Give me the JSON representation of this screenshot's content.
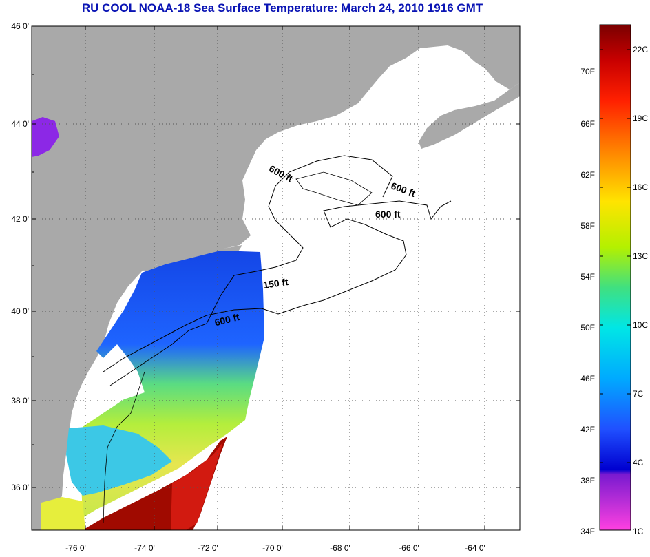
{
  "title": "RU COOL  NOAA-18  Sea Surface Temperature:  March 24, 2010 1916 GMT",
  "map": {
    "lat_ticks": [
      "46 0'",
      "44 0'",
      "42 0'",
      "40 0'",
      "38 0'",
      "36 0'"
    ],
    "lon_ticks": [
      "-76 0'",
      "-74 0'",
      "-72 0'",
      "-70 0'",
      "-68 0'",
      "-66 0'",
      "-64 0'"
    ],
    "contour_labels": [
      "600 ft",
      "600 ft",
      "600 ft",
      "150 ft",
      "600 ft"
    ],
    "colors": {
      "land": "#a9a9a9",
      "ocean_nodata": "#ffffff",
      "grid": "#555555"
    }
  },
  "colorbar": {
    "fahrenheit": [
      "70F",
      "66F",
      "62F",
      "58F",
      "54F",
      "50F",
      "46F",
      "42F",
      "38F",
      "34F"
    ],
    "celsius": [
      "22C",
      "19C",
      "16C",
      "13C",
      "10C",
      "7C",
      "4C",
      "1C"
    ]
  }
}
